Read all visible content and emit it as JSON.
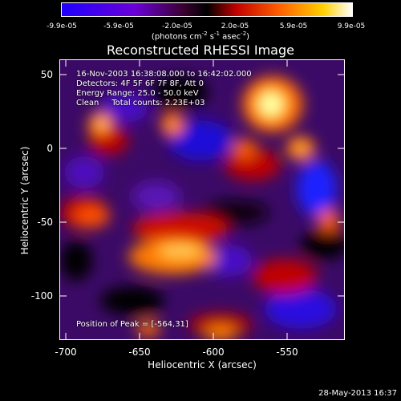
{
  "colorbar": {
    "tick_labels": [
      "-9.9e-05",
      "-5.9e-05",
      "-2.0e-05",
      "2.0e-05",
      "5.9e-05",
      "9.9e-05"
    ],
    "units_prefix": "(photons cm",
    "units_exp1": "-2",
    "units_mid": " s",
    "units_exp2": "-1",
    "units_mid2": " asec",
    "units_exp3": "-2",
    "units_suffix": ")"
  },
  "title": "Reconstructed RHESSI Image",
  "info": {
    "line1": "16-Nov-2003 16:38:08.000 to 16:42:02.000",
    "line2": "Detectors: 4F 5F 6F 7F 8F, Att 0",
    "line3": "Energy Range: 25.0 - 50.0 keV",
    "line4": "Clean     Total counts: 2.23E+03"
  },
  "peak": "Position of Peak = [-564,31]",
  "axes": {
    "xlabel": "Heliocentric X (arcsec)",
    "ylabel": "Heliocentric Y (arcsec)",
    "xticks": [
      "-700",
      "-650",
      "-600",
      "-550"
    ],
    "yticks": [
      "50",
      "0",
      "-50",
      "-100"
    ],
    "xlim": [
      -720,
      -527
    ],
    "ylim": [
      -132,
      62
    ]
  },
  "footer": "28-May-2013 16:37",
  "colors": {
    "neg": "#1a10ff",
    "mid": "#000000",
    "pos": "#ffffff",
    "hot": "#ff3000"
  }
}
